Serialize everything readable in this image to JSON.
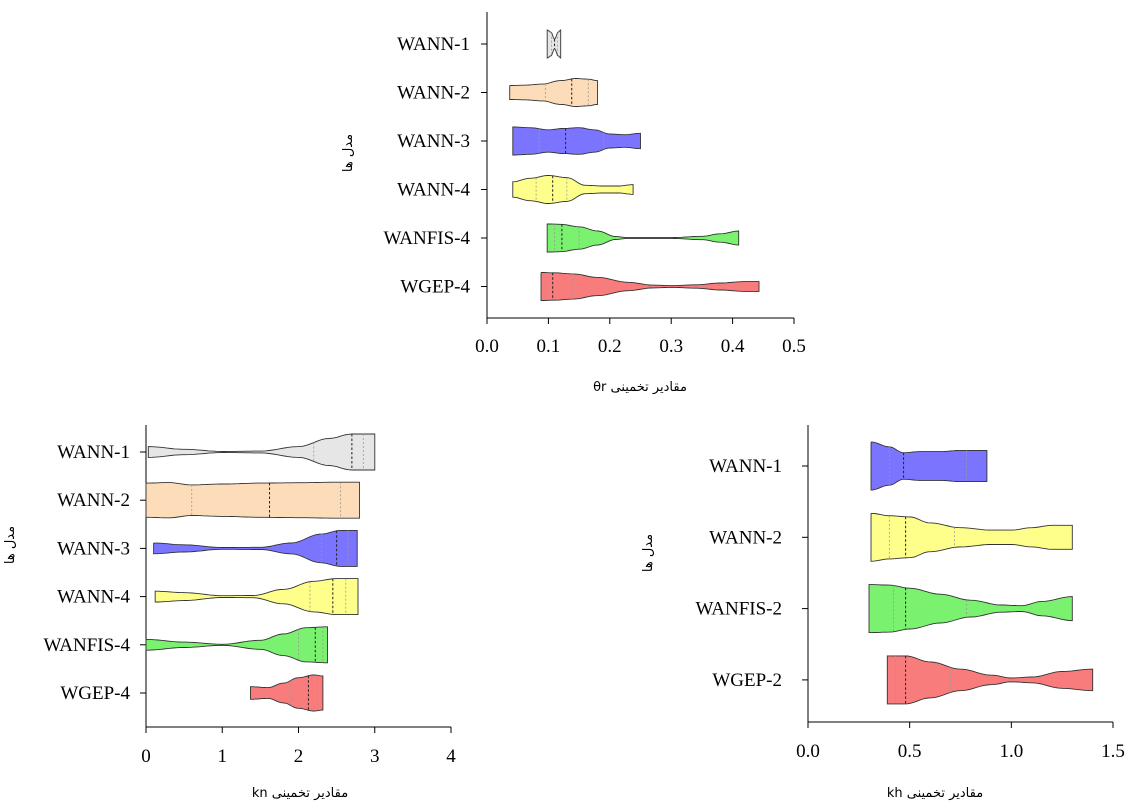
{
  "chart_data": [
    {
      "type": "violin",
      "xlabel": "مقادیر تخمینی θr",
      "ylabel": "مدل ها",
      "xlim": [
        0.0,
        0.5
      ],
      "xticks": [
        "0.0",
        "0.1",
        "0.2",
        "0.3",
        "0.4",
        "0.5"
      ],
      "categories": [
        "WANN-1",
        "WANN-2",
        "WANN-3",
        "WANN-4",
        "WANFIS-4",
        "WGEP-4"
      ],
      "series": [
        {
          "name": "WANN-1",
          "color": "#e6e6e6",
          "min": 0.098,
          "max": 0.12,
          "median": 0.11,
          "q1": 0.105,
          "q3": 0.115,
          "profile": [
            [
              0.098,
              1.0
            ],
            [
              0.104,
              0.85
            ],
            [
              0.11,
              0.35
            ],
            [
              0.116,
              0.85
            ],
            [
              0.12,
              1.0
            ]
          ]
        },
        {
          "name": "WANN-2",
          "color": "#fddcb9",
          "min": 0.037,
          "max": 0.18,
          "median": 0.138,
          "q1": 0.095,
          "q3": 0.165,
          "profile": [
            [
              0.037,
              0.5
            ],
            [
              0.06,
              0.52
            ],
            [
              0.09,
              0.6
            ],
            [
              0.12,
              0.85
            ],
            [
              0.145,
              1.0
            ],
            [
              0.165,
              0.95
            ],
            [
              0.18,
              0.85
            ]
          ]
        },
        {
          "name": "WANN-3",
          "color": "#7b74ff",
          "min": 0.042,
          "max": 0.25,
          "median": 0.128,
          "q1": 0.085,
          "q3": 0.19,
          "profile": [
            [
              0.042,
              1.0
            ],
            [
              0.07,
              0.95
            ],
            [
              0.1,
              0.8
            ],
            [
              0.125,
              0.9
            ],
            [
              0.15,
              0.95
            ],
            [
              0.175,
              0.8
            ],
            [
              0.2,
              0.5
            ],
            [
              0.225,
              0.45
            ],
            [
              0.25,
              0.55
            ]
          ]
        },
        {
          "name": "WANN-4",
          "color": "#fefe8a",
          "min": 0.042,
          "max": 0.238,
          "median": 0.107,
          "q1": 0.08,
          "q3": 0.13,
          "profile": [
            [
              0.042,
              0.55
            ],
            [
              0.07,
              0.8
            ],
            [
              0.1,
              1.0
            ],
            [
              0.13,
              0.85
            ],
            [
              0.16,
              0.3
            ],
            [
              0.19,
              0.25
            ],
            [
              0.215,
              0.25
            ],
            [
              0.238,
              0.35
            ]
          ]
        },
        {
          "name": "WANFIS-4",
          "color": "#7af26f",
          "min": 0.098,
          "max": 0.41,
          "median": 0.122,
          "q1": 0.11,
          "q3": 0.15,
          "profile": [
            [
              0.098,
              1.0
            ],
            [
              0.12,
              0.98
            ],
            [
              0.15,
              0.8
            ],
            [
              0.18,
              0.5
            ],
            [
              0.21,
              0.1
            ],
            [
              0.23,
              0.03
            ],
            [
              0.3,
              0.03
            ],
            [
              0.35,
              0.12
            ],
            [
              0.38,
              0.3
            ],
            [
              0.41,
              0.5
            ]
          ]
        },
        {
          "name": "WGEP-4",
          "color": "#f97c7c",
          "min": 0.088,
          "max": 0.443,
          "median": 0.107,
          "q1": 0.095,
          "q3": 0.14,
          "profile": [
            [
              0.088,
              1.0
            ],
            [
              0.11,
              0.98
            ],
            [
              0.14,
              0.9
            ],
            [
              0.18,
              0.65
            ],
            [
              0.23,
              0.3
            ],
            [
              0.27,
              0.1
            ],
            [
              0.3,
              0.06
            ],
            [
              0.34,
              0.12
            ],
            [
              0.38,
              0.25
            ],
            [
              0.42,
              0.35
            ],
            [
              0.443,
              0.35
            ]
          ]
        }
      ]
    },
    {
      "type": "violin",
      "xlabel": "مقادیر تخمینی kn",
      "ylabel": "مدل ها",
      "xlim": [
        0,
        4
      ],
      "xticks": [
        "0",
        "1",
        "2",
        "3",
        "4"
      ],
      "categories": [
        "WANN-1",
        "WANN-2",
        "WANN-3",
        "WANN-4",
        "WANFIS-4",
        "WGEP-4"
      ],
      "series": [
        {
          "name": "WANN-1",
          "color": "#e6e6e6",
          "min": 0.03,
          "max": 3.0,
          "median": 2.7,
          "q1": 2.2,
          "q3": 2.85,
          "profile": [
            [
              0.03,
              0.3
            ],
            [
              0.5,
              0.15
            ],
            [
              1.0,
              0.03
            ],
            [
              1.5,
              0.05
            ],
            [
              2.0,
              0.3
            ],
            [
              2.4,
              0.75
            ],
            [
              2.7,
              1.0
            ],
            [
              3.0,
              1.0
            ]
          ]
        },
        {
          "name": "WANN-2",
          "color": "#fddcb9",
          "min": 0.0,
          "max": 2.8,
          "median": 1.62,
          "q1": 0.6,
          "q3": 2.55,
          "profile": [
            [
              0.0,
              0.95
            ],
            [
              0.3,
              0.98
            ],
            [
              0.6,
              0.85
            ],
            [
              1.0,
              0.9
            ],
            [
              1.5,
              0.95
            ],
            [
              2.0,
              0.97
            ],
            [
              2.5,
              1.0
            ],
            [
              2.8,
              1.0
            ]
          ]
        },
        {
          "name": "WANN-3",
          "color": "#7b74ff",
          "min": 0.1,
          "max": 2.77,
          "median": 2.5,
          "q1": 2.3,
          "q3": 2.65,
          "profile": [
            [
              0.1,
              0.3
            ],
            [
              0.5,
              0.2
            ],
            [
              1.0,
              0.05
            ],
            [
              1.5,
              0.06
            ],
            [
              1.9,
              0.3
            ],
            [
              2.3,
              0.8
            ],
            [
              2.55,
              1.0
            ],
            [
              2.77,
              1.0
            ]
          ]
        },
        {
          "name": "WANN-4",
          "color": "#fefe8a",
          "min": 0.12,
          "max": 2.78,
          "median": 2.45,
          "q1": 2.15,
          "q3": 2.62,
          "profile": [
            [
              0.12,
              0.3
            ],
            [
              0.5,
              0.22
            ],
            [
              1.0,
              0.05
            ],
            [
              1.4,
              0.06
            ],
            [
              1.8,
              0.4
            ],
            [
              2.2,
              0.85
            ],
            [
              2.5,
              1.0
            ],
            [
              2.78,
              1.0
            ]
          ]
        },
        {
          "name": "WANFIS-4",
          "color": "#7af26f",
          "min": 0.0,
          "max": 2.38,
          "median": 2.22,
          "q1": 2.0,
          "q3": 2.32,
          "profile": [
            [
              0.0,
              0.3
            ],
            [
              0.5,
              0.15
            ],
            [
              1.0,
              0.03
            ],
            [
              1.5,
              0.25
            ],
            [
              1.8,
              0.6
            ],
            [
              2.1,
              0.95
            ],
            [
              2.38,
              1.0
            ]
          ]
        },
        {
          "name": "WGEP-4",
          "color": "#f97c7c",
          "min": 1.37,
          "max": 2.32,
          "median": 2.13,
          "q1": 1.9,
          "q3": 2.25,
          "profile": [
            [
              1.37,
              0.35
            ],
            [
              1.6,
              0.3
            ],
            [
              1.8,
              0.55
            ],
            [
              2.0,
              0.85
            ],
            [
              2.2,
              1.0
            ],
            [
              2.32,
              0.95
            ]
          ]
        }
      ]
    },
    {
      "type": "violin",
      "xlabel": "مقادیر تخمینی kh",
      "ylabel": "مدل ها",
      "xlim": [
        0.0,
        1.5
      ],
      "xticks": [
        "0.0",
        "0.5",
        "1.0",
        "1.5"
      ],
      "categories": [
        "WANN-1",
        "WANN-2",
        "WANFIS-2",
        "WGEP-2"
      ],
      "series": [
        {
          "name": "WANN-1",
          "color": "#7b74ff",
          "min": 0.31,
          "max": 0.88,
          "median": 0.47,
          "q1": 0.4,
          "q3": 0.78,
          "profile": [
            [
              0.31,
              1.0
            ],
            [
              0.4,
              0.8
            ],
            [
              0.47,
              0.55
            ],
            [
              0.55,
              0.6
            ],
            [
              0.65,
              0.6
            ],
            [
              0.75,
              0.65
            ],
            [
              0.88,
              0.65
            ]
          ]
        },
        {
          "name": "WANN-2",
          "color": "#fefe8a",
          "min": 0.31,
          "max": 1.3,
          "median": 0.48,
          "q1": 0.4,
          "q3": 0.72,
          "profile": [
            [
              0.31,
              1.0
            ],
            [
              0.4,
              0.9
            ],
            [
              0.5,
              0.85
            ],
            [
              0.6,
              0.6
            ],
            [
              0.75,
              0.4
            ],
            [
              0.9,
              0.3
            ],
            [
              1.0,
              0.3
            ],
            [
              1.1,
              0.4
            ],
            [
              1.2,
              0.5
            ],
            [
              1.3,
              0.5
            ]
          ]
        },
        {
          "name": "WANFIS-2",
          "color": "#7af26f",
          "min": 0.3,
          "max": 1.3,
          "median": 0.48,
          "q1": 0.42,
          "q3": 0.78,
          "profile": [
            [
              0.3,
              1.0
            ],
            [
              0.4,
              0.98
            ],
            [
              0.5,
              0.85
            ],
            [
              0.65,
              0.6
            ],
            [
              0.8,
              0.35
            ],
            [
              0.95,
              0.15
            ],
            [
              1.05,
              0.12
            ],
            [
              1.15,
              0.3
            ],
            [
              1.3,
              0.5
            ]
          ]
        },
        {
          "name": "WGEP-2",
          "color": "#f97c7c",
          "min": 0.39,
          "max": 1.4,
          "median": 0.48,
          "q1": 0.43,
          "q3": 0.7,
          "profile": [
            [
              0.39,
              1.0
            ],
            [
              0.48,
              1.0
            ],
            [
              0.6,
              0.75
            ],
            [
              0.75,
              0.45
            ],
            [
              0.9,
              0.2
            ],
            [
              1.0,
              0.08
            ],
            [
              1.1,
              0.12
            ],
            [
              1.25,
              0.35
            ],
            [
              1.4,
              0.45
            ]
          ]
        }
      ]
    }
  ]
}
